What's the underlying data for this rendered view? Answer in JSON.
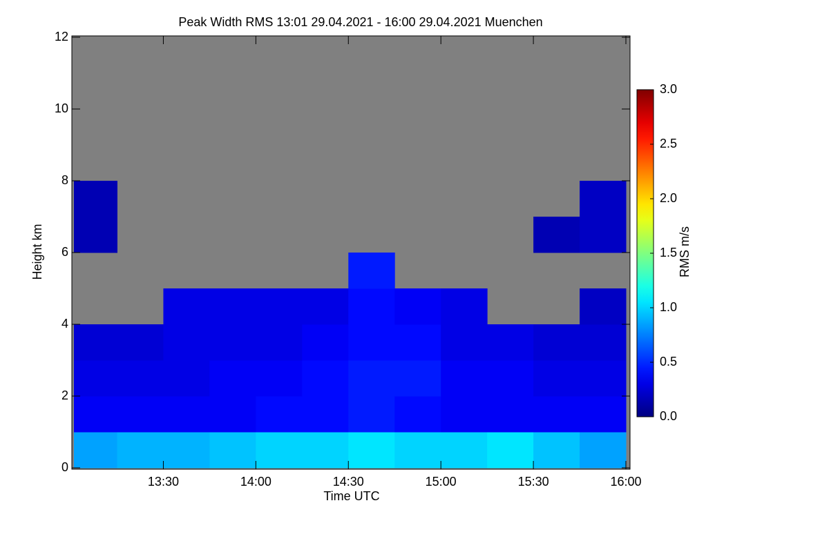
{
  "chart_data": {
    "type": "heatmap",
    "title": "Peak Width RMS   13:01 29.04.2021 - 16:00 29.04.2021 Muenchen",
    "x_label": "Time UTC",
    "y_label": "Height km",
    "colorbar_label": "RMS m/s",
    "xlim": [
      781,
      960
    ],
    "xticks": [
      {
        "value": 810,
        "label": "13:30"
      },
      {
        "value": 840,
        "label": "14:00"
      },
      {
        "value": 870,
        "label": "14:30"
      },
      {
        "value": 900,
        "label": "15:00"
      },
      {
        "value": 930,
        "label": "15:30"
      },
      {
        "value": 960,
        "label": "16:00"
      }
    ],
    "ylim": [
      0,
      12
    ],
    "yticks": [
      0,
      2,
      4,
      6,
      8,
      10,
      12
    ],
    "zlim": [
      0,
      3
    ],
    "zticks": [
      {
        "value": 0,
        "label": "0.0"
      },
      {
        "value": 0.5,
        "label": "0.5"
      },
      {
        "value": 1,
        "label": "1.0"
      },
      {
        "value": 1.5,
        "label": "1.5"
      },
      {
        "value": 2,
        "label": "2.0"
      },
      {
        "value": 2.5,
        "label": "2.5"
      },
      {
        "value": 3,
        "label": "3.0"
      }
    ],
    "colormap": "jet",
    "missing_color": "#808080",
    "x_edges": [
      781,
      795,
      810,
      825,
      840,
      855,
      870,
      885,
      900,
      915,
      930,
      945,
      960
    ],
    "y_edges": [
      0,
      1,
      2,
      3,
      4,
      5,
      6,
      7,
      8,
      9,
      10,
      11,
      12
    ],
    "z": [
      [
        0.85,
        0.9,
        0.9,
        0.95,
        1.0,
        1.0,
        1.05,
        1.0,
        1.0,
        1.05,
        0.95,
        0.85
      ],
      [
        0.35,
        0.35,
        0.35,
        0.35,
        0.4,
        0.4,
        0.45,
        0.4,
        0.35,
        0.35,
        0.35,
        0.35
      ],
      [
        0.3,
        0.3,
        0.3,
        0.35,
        0.35,
        0.4,
        0.45,
        0.45,
        0.35,
        0.35,
        0.3,
        0.3
      ],
      [
        0.25,
        0.25,
        0.3,
        0.3,
        0.3,
        0.35,
        0.4,
        0.4,
        0.3,
        0.3,
        0.25,
        0.25
      ],
      [
        null,
        null,
        0.3,
        0.3,
        0.3,
        0.3,
        0.4,
        0.35,
        0.3,
        null,
        null,
        0.2
      ],
      [
        null,
        null,
        null,
        null,
        null,
        null,
        0.45,
        null,
        null,
        null,
        null,
        null
      ],
      [
        0.15,
        null,
        null,
        null,
        null,
        null,
        null,
        null,
        null,
        null,
        0.15,
        0.2
      ],
      [
        0.15,
        null,
        null,
        null,
        null,
        null,
        null,
        null,
        null,
        null,
        null,
        0.2
      ],
      [
        null,
        null,
        null,
        null,
        null,
        null,
        null,
        null,
        null,
        null,
        null,
        null
      ],
      [
        null,
        null,
        null,
        null,
        null,
        null,
        null,
        null,
        null,
        null,
        null,
        null
      ],
      [
        null,
        null,
        null,
        null,
        null,
        null,
        null,
        null,
        null,
        null,
        null,
        null
      ],
      [
        null,
        null,
        null,
        null,
        null,
        null,
        null,
        null,
        null,
        null,
        null,
        null
      ]
    ]
  }
}
